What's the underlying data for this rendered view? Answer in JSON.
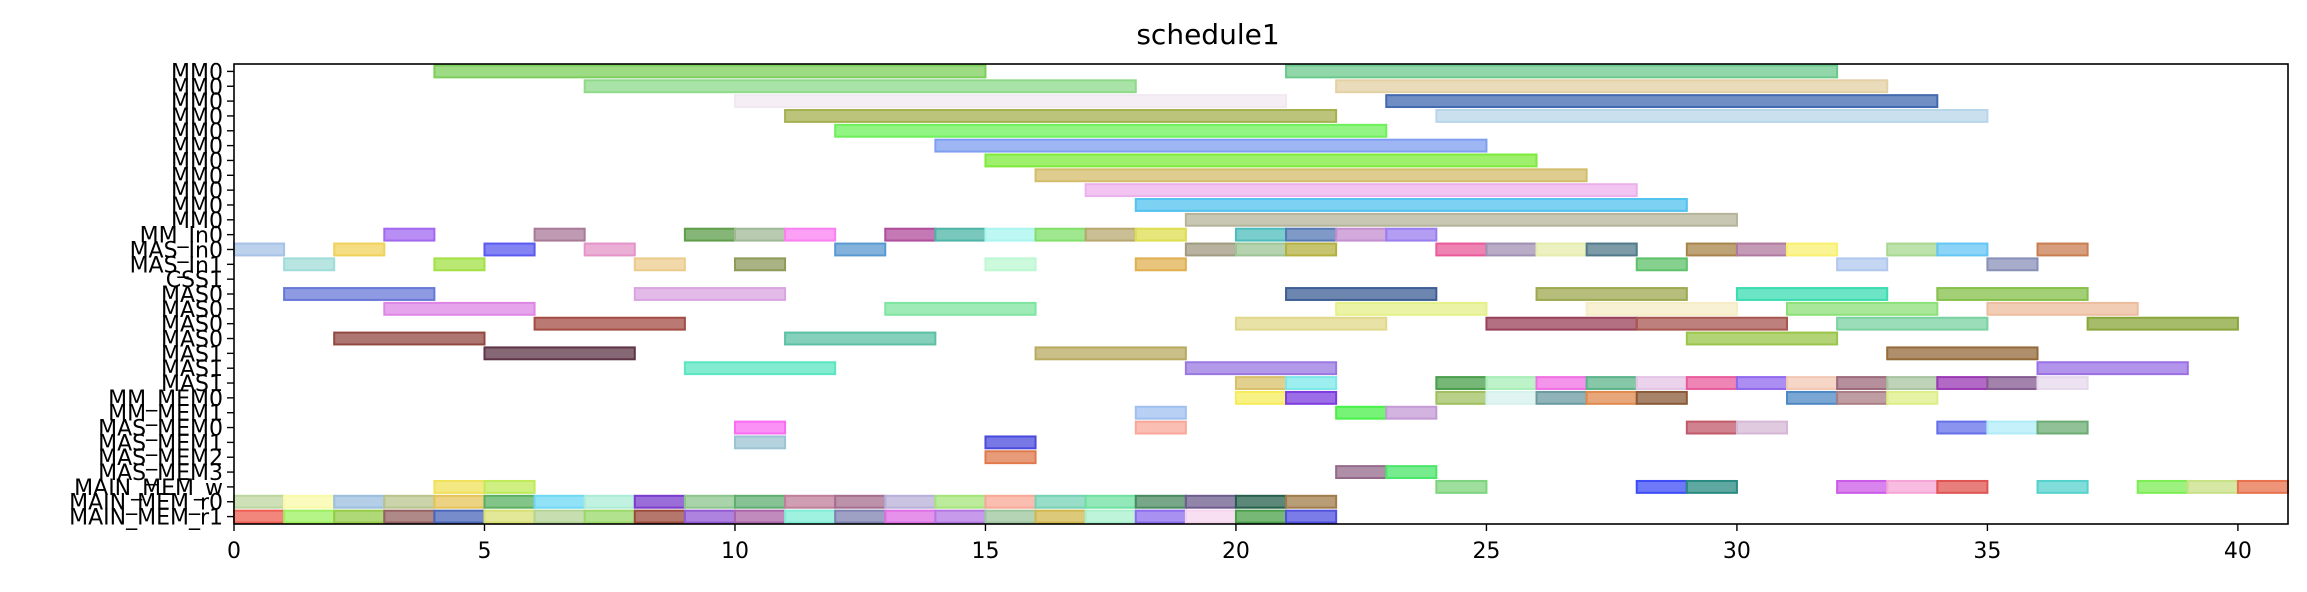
{
  "chart_data": {
    "type": "gantt",
    "title": "schedule1",
    "xlim": [
      0,
      41
    ],
    "x_ticks": [
      0,
      5,
      10,
      15,
      20,
      25,
      30,
      35,
      40
    ],
    "grid": false,
    "legend": "none",
    "rows": [
      "MM0",
      "MM0",
      "MM0",
      "MM0",
      "MM0",
      "MM0",
      "MM0",
      "MM0",
      "MM0",
      "MM0",
      "MM0",
      "MM_In0",
      "MAS_In0",
      "MAS_In1",
      "CSS1",
      "MAS0",
      "MAS0",
      "MAS0",
      "MAS0",
      "MAS1",
      "MAS1",
      "MAS1",
      "MM_MEM0",
      "MM_MEM1",
      "MAS_MEM0",
      "MAS_MEM1",
      "MAS_MEM2",
      "MAS_MEM3",
      "MAIN_MEM_w",
      "MAIN_MEM_r0",
      "MAIN_MEM_r1"
    ],
    "bars": [
      {
        "row": 0,
        "start": 4,
        "end": 15,
        "color": "#7ccf5c"
      },
      {
        "row": 0,
        "start": 21,
        "end": 32,
        "color": "#6cc98c"
      },
      {
        "row": 1,
        "start": 7,
        "end": 18,
        "color": "#8ed98a"
      },
      {
        "row": 1,
        "start": 22,
        "end": 33,
        "color": "#e3d0a4"
      },
      {
        "row": 2,
        "start": 10,
        "end": 21,
        "color": "#f2e8f2"
      },
      {
        "row": 2,
        "start": 23,
        "end": 34,
        "color": "#4268b0"
      },
      {
        "row": 3,
        "start": 11,
        "end": 22,
        "color": "#a5b050"
      },
      {
        "row": 3,
        "start": 24,
        "end": 35,
        "color": "#b8d6ea"
      },
      {
        "row": 4,
        "start": 12,
        "end": 23,
        "color": "#6ef05a"
      },
      {
        "row": 5,
        "start": 14,
        "end": 25,
        "color": "#7f9ef0"
      },
      {
        "row": 6,
        "start": 15,
        "end": 26,
        "color": "#7eea3a"
      },
      {
        "row": 7,
        "start": 16,
        "end": 27,
        "color": "#d3bc6a"
      },
      {
        "row": 8,
        "start": 17,
        "end": 28,
        "color": "#ecb0ec"
      },
      {
        "row": 9,
        "start": 18,
        "end": 29,
        "color": "#52c2ee"
      },
      {
        "row": 10,
        "start": 19,
        "end": 30,
        "color": "#b5b49a"
      },
      {
        "row": 11,
        "start": 3,
        "end": 4,
        "color": "#a268f0"
      },
      {
        "row": 11,
        "start": 6,
        "end": 7,
        "color": "#a87a98"
      },
      {
        "row": 11,
        "start": 9,
        "end": 10,
        "color": "#5e9e4a"
      },
      {
        "row": 11,
        "start": 10,
        "end": 11,
        "color": "#a0b896"
      },
      {
        "row": 11,
        "start": 11,
        "end": 12,
        "color": "#fa80f2"
      },
      {
        "row": 11,
        "start": 13,
        "end": 14,
        "color": "#b04c9c"
      },
      {
        "row": 11,
        "start": 14,
        "end": 15,
        "color": "#4eb5a6"
      },
      {
        "row": 11,
        "start": 15,
        "end": 16,
        "color": "#a8f6ee"
      },
      {
        "row": 11,
        "start": 16,
        "end": 17,
        "color": "#80e06a"
      },
      {
        "row": 11,
        "start": 17,
        "end": 18,
        "color": "#b8a870"
      },
      {
        "row": 11,
        "start": 18,
        "end": 19,
        "color": "#dede52"
      },
      {
        "row": 11,
        "start": 20,
        "end": 21,
        "color": "#4cbcbc"
      },
      {
        "row": 11,
        "start": 21,
        "end": 22,
        "color": "#5478b4"
      },
      {
        "row": 11,
        "start": 22,
        "end": 23,
        "color": "#c48ed0"
      },
      {
        "row": 11,
        "start": 23,
        "end": 24,
        "color": "#9a7ef0"
      },
      {
        "row": 12,
        "start": 0,
        "end": 1,
        "color": "#a6c2e6"
      },
      {
        "row": 12,
        "start": 2,
        "end": 3,
        "color": "#f0d25a"
      },
      {
        "row": 12,
        "start": 5,
        "end": 6,
        "color": "#5a5af0"
      },
      {
        "row": 12,
        "start": 7,
        "end": 8,
        "color": "#e494c8"
      },
      {
        "row": 12,
        "start": 12,
        "end": 13,
        "color": "#5a9ad0"
      },
      {
        "row": 12,
        "start": 19,
        "end": 20,
        "color": "#a09a80"
      },
      {
        "row": 12,
        "start": 20,
        "end": 21,
        "color": "#9cc494"
      },
      {
        "row": 12,
        "start": 21,
        "end": 22,
        "color": "#b4b040"
      },
      {
        "row": 12,
        "start": 24,
        "end": 25,
        "color": "#e85a9a"
      },
      {
        "row": 12,
        "start": 25,
        "end": 26,
        "color": "#a090b4"
      },
      {
        "row": 12,
        "start": 26,
        "end": 27,
        "color": "#e6ecac"
      },
      {
        "row": 12,
        "start": 27,
        "end": 28,
        "color": "#507a8a"
      },
      {
        "row": 12,
        "start": 29,
        "end": 30,
        "color": "#a8844a"
      },
      {
        "row": 12,
        "start": 30,
        "end": 31,
        "color": "#b07a9e"
      },
      {
        "row": 12,
        "start": 31,
        "end": 32,
        "color": "#faf070"
      },
      {
        "row": 12,
        "start": 33,
        "end": 34,
        "color": "#a8d890"
      },
      {
        "row": 12,
        "start": 34,
        "end": 35,
        "color": "#64c6f4"
      },
      {
        "row": 12,
        "start": 36,
        "end": 37,
        "color": "#c87e50"
      },
      {
        "row": 13,
        "start": 1,
        "end": 2,
        "color": "#a0dcd8"
      },
      {
        "row": 13,
        "start": 4,
        "end": 5,
        "color": "#a2e044"
      },
      {
        "row": 13,
        "start": 8,
        "end": 9,
        "color": "#eccc8c"
      },
      {
        "row": 13,
        "start": 10,
        "end": 11,
        "color": "#8e9a5a"
      },
      {
        "row": 13,
        "start": 15,
        "end": 16,
        "color": "#bcf8d2"
      },
      {
        "row": 13,
        "start": 18,
        "end": 19,
        "color": "#e0b050"
      },
      {
        "row": 13,
        "start": 28,
        "end": 29,
        "color": "#5ec26a"
      },
      {
        "row": 13,
        "start": 32,
        "end": 33,
        "color": "#b0c8ee"
      },
      {
        "row": 13,
        "start": 35,
        "end": 36,
        "color": "#8890b8"
      },
      {
        "row": 15,
        "start": 1,
        "end": 4,
        "color": "#6878d8"
      },
      {
        "row": 15,
        "start": 8,
        "end": 11,
        "color": "#daa4e0"
      },
      {
        "row": 15,
        "start": 21,
        "end": 24,
        "color": "#3c5e94"
      },
      {
        "row": 15,
        "start": 26,
        "end": 29,
        "color": "#9ea850"
      },
      {
        "row": 15,
        "start": 30,
        "end": 33,
        "color": "#3adcb0"
      },
      {
        "row": 15,
        "start": 34,
        "end": 37,
        "color": "#84c04a"
      },
      {
        "row": 16,
        "start": 3,
        "end": 6,
        "color": "#de86e6"
      },
      {
        "row": 16,
        "start": 13,
        "end": 16,
        "color": "#7ee4a0"
      },
      {
        "row": 16,
        "start": 22,
        "end": 25,
        "color": "#e4f088"
      },
      {
        "row": 16,
        "start": 27,
        "end": 30,
        "color": "#f6ecc6"
      },
      {
        "row": 16,
        "start": 31,
        "end": 34,
        "color": "#8ce078"
      },
      {
        "row": 16,
        "start": 35,
        "end": 38,
        "color": "#eebc9e"
      },
      {
        "row": 17,
        "start": 6,
        "end": 9,
        "color": "#a44c44"
      },
      {
        "row": 17,
        "start": 20,
        "end": 23,
        "color": "#e0d88a"
      },
      {
        "row": 17,
        "start": 25,
        "end": 28,
        "color": "#9a4058"
      },
      {
        "row": 17,
        "start": 28,
        "end": 31,
        "color": "#a85650"
      },
      {
        "row": 17,
        "start": 32,
        "end": 35,
        "color": "#7ad2a0"
      },
      {
        "row": 17,
        "start": 37,
        "end": 40,
        "color": "#8aa63a"
      },
      {
        "row": 18,
        "start": 2,
        "end": 5,
        "color": "#924840"
      },
      {
        "row": 18,
        "start": 11,
        "end": 14,
        "color": "#5cc0a4"
      },
      {
        "row": 18,
        "start": 29,
        "end": 32,
        "color": "#9ac44a"
      },
      {
        "row": 19,
        "start": 5,
        "end": 8,
        "color": "#5e3446"
      },
      {
        "row": 19,
        "start": 16,
        "end": 19,
        "color": "#b8aa60"
      },
      {
        "row": 19,
        "start": 33,
        "end": 36,
        "color": "#946a3a"
      },
      {
        "row": 20,
        "start": 9,
        "end": 12,
        "color": "#5ae6c0"
      },
      {
        "row": 20,
        "start": 19,
        "end": 22,
        "color": "#9a78e2"
      },
      {
        "row": 20,
        "start": 36,
        "end": 39,
        "color": "#9a70e4"
      },
      {
        "row": 21,
        "start": 20,
        "end": 21,
        "color": "#d8c06a"
      },
      {
        "row": 21,
        "start": 21,
        "end": 22,
        "color": "#7ce8e8"
      },
      {
        "row": 21,
        "start": 24,
        "end": 25,
        "color": "#489e4a"
      },
      {
        "row": 21,
        "start": 25,
        "end": 26,
        "color": "#a8eeb6"
      },
      {
        "row": 21,
        "start": 26,
        "end": 27,
        "color": "#f070e4"
      },
      {
        "row": 21,
        "start": 27,
        "end": 28,
        "color": "#5cb48a"
      },
      {
        "row": 21,
        "start": 28,
        "end": 29,
        "color": "#e4c4e6"
      },
      {
        "row": 21,
        "start": 29,
        "end": 30,
        "color": "#e85c9c"
      },
      {
        "row": 21,
        "start": 30,
        "end": 31,
        "color": "#9068ee"
      },
      {
        "row": 21,
        "start": 31,
        "end": 32,
        "color": "#f2c8b4"
      },
      {
        "row": 21,
        "start": 32,
        "end": 33,
        "color": "#9c6a7a"
      },
      {
        "row": 21,
        "start": 33,
        "end": 34,
        "color": "#a8c4a0"
      },
      {
        "row": 21,
        "start": 34,
        "end": 35,
        "color": "#9a38b4"
      },
      {
        "row": 21,
        "start": 35,
        "end": 36,
        "color": "#845a90"
      },
      {
        "row": 21,
        "start": 36,
        "end": 37,
        "color": "#e6d8ec"
      },
      {
        "row": 22,
        "start": 20,
        "end": 21,
        "color": "#f6ec5a"
      },
      {
        "row": 22,
        "start": 21,
        "end": 22,
        "color": "#7c3ce0"
      },
      {
        "row": 22,
        "start": 24,
        "end": 25,
        "color": "#a0c060"
      },
      {
        "row": 22,
        "start": 25,
        "end": 26,
        "color": "#d6f2ec"
      },
      {
        "row": 22,
        "start": 26,
        "end": 27,
        "color": "#6a9aa0"
      },
      {
        "row": 22,
        "start": 27,
        "end": 28,
        "color": "#e08a4e"
      },
      {
        "row": 22,
        "start": 28,
        "end": 29,
        "color": "#8a5a38"
      },
      {
        "row": 22,
        "start": 31,
        "end": 32,
        "color": "#4e88c4"
      },
      {
        "row": 22,
        "start": 32,
        "end": 33,
        "color": "#a87e84"
      },
      {
        "row": 22,
        "start": 33,
        "end": 34,
        "color": "#ddee86"
      },
      {
        "row": 23,
        "start": 18,
        "end": 19,
        "color": "#a0c0f0"
      },
      {
        "row": 23,
        "start": 22,
        "end": 23,
        "color": "#4af04a"
      },
      {
        "row": 23,
        "start": 23,
        "end": 24,
        "color": "#c49ad6"
      },
      {
        "row": 24,
        "start": 10,
        "end": 11,
        "color": "#fa6cf4"
      },
      {
        "row": 24,
        "start": 18,
        "end": 19,
        "color": "#f8a898"
      },
      {
        "row": 24,
        "start": 29,
        "end": 30,
        "color": "#c05a6a"
      },
      {
        "row": 24,
        "start": 30,
        "end": 31,
        "color": "#d6b8d6"
      },
      {
        "row": 24,
        "start": 34,
        "end": 35,
        "color": "#6470e8"
      },
      {
        "row": 24,
        "start": 35,
        "end": 36,
        "color": "#b0ecf8"
      },
      {
        "row": 24,
        "start": 36,
        "end": 37,
        "color": "#6cac74"
      },
      {
        "row": 25,
        "start": 10,
        "end": 11,
        "color": "#9cc4d4"
      },
      {
        "row": 25,
        "start": 15,
        "end": 16,
        "color": "#4a4adc"
      },
      {
        "row": 26,
        "start": 15,
        "end": 16,
        "color": "#e07a4c"
      },
      {
        "row": 27,
        "start": 22,
        "end": 23,
        "color": "#946a8a"
      },
      {
        "row": 27,
        "start": 23,
        "end": 24,
        "color": "#4ae66a"
      },
      {
        "row": 28,
        "start": 4,
        "end": 5,
        "color": "#f0e05a"
      },
      {
        "row": 28,
        "start": 5,
        "end": 6,
        "color": "#c0ea58"
      },
      {
        "row": 28,
        "start": 24,
        "end": 25,
        "color": "#7ed47e"
      },
      {
        "row": 28,
        "start": 28,
        "end": 29,
        "color": "#3c4cf6"
      },
      {
        "row": 28,
        "start": 29,
        "end": 30,
        "color": "#2a8a82"
      },
      {
        "row": 28,
        "start": 32,
        "end": 33,
        "color": "#cc5ae8"
      },
      {
        "row": 28,
        "start": 33,
        "end": 34,
        "color": "#f6a6d6"
      },
      {
        "row": 28,
        "start": 34,
        "end": 35,
        "color": "#e05452"
      },
      {
        "row": 28,
        "start": 36,
        "end": 37,
        "color": "#56d2cc"
      },
      {
        "row": 28,
        "start": 38,
        "end": 39,
        "color": "#7cee54"
      },
      {
        "row": 28,
        "start": 39,
        "end": 40,
        "color": "#c8e086"
      },
      {
        "row": 28,
        "start": 40,
        "end": 41,
        "color": "#e8704c"
      },
      {
        "row": 29,
        "start": 0,
        "end": 1,
        "color": "#bcd6a0"
      },
      {
        "row": 29,
        "start": 1,
        "end": 2,
        "color": "#fafaa8"
      },
      {
        "row": 29,
        "start": 2,
        "end": 3,
        "color": "#9abede"
      },
      {
        "row": 29,
        "start": 3,
        "end": 4,
        "color": "#b8c48c"
      },
      {
        "row": 29,
        "start": 4,
        "end": 5,
        "color": "#e4c45a"
      },
      {
        "row": 29,
        "start": 5,
        "end": 6,
        "color": "#5ab060"
      },
      {
        "row": 29,
        "start": 6,
        "end": 7,
        "color": "#6ed8f4"
      },
      {
        "row": 29,
        "start": 7,
        "end": 8,
        "color": "#acecd6"
      },
      {
        "row": 29,
        "start": 8,
        "end": 9,
        "color": "#7a3ccc"
      },
      {
        "row": 29,
        "start": 9,
        "end": 10,
        "color": "#8cc48c"
      },
      {
        "row": 29,
        "start": 10,
        "end": 11,
        "color": "#5eae70"
      },
      {
        "row": 29,
        "start": 11,
        "end": 12,
        "color": "#c07e9a"
      },
      {
        "row": 29,
        "start": 12,
        "end": 13,
        "color": "#a46e8e"
      },
      {
        "row": 29,
        "start": 13,
        "end": 14,
        "color": "#b8b0d8"
      },
      {
        "row": 29,
        "start": 14,
        "end": 15,
        "color": "#a4e47a"
      },
      {
        "row": 29,
        "start": 15,
        "end": 16,
        "color": "#f8a896"
      },
      {
        "row": 29,
        "start": 16,
        "end": 17,
        "color": "#76d2b4"
      },
      {
        "row": 29,
        "start": 17,
        "end": 18,
        "color": "#6ee0a2"
      },
      {
        "row": 29,
        "start": 18,
        "end": 19,
        "color": "#4a8a60"
      },
      {
        "row": 29,
        "start": 19,
        "end": 20,
        "color": "#6e5c8e"
      },
      {
        "row": 29,
        "start": 20,
        "end": 21,
        "color": "#26604c"
      },
      {
        "row": 29,
        "start": 21,
        "end": 22,
        "color": "#a07c4a"
      },
      {
        "row": 30,
        "start": 0,
        "end": 1,
        "color": "#ee5e52"
      },
      {
        "row": 30,
        "start": 1,
        "end": 2,
        "color": "#9cf05e"
      },
      {
        "row": 30,
        "start": 2,
        "end": 3,
        "color": "#94cc48"
      },
      {
        "row": 30,
        "start": 3,
        "end": 4,
        "color": "#946060"
      },
      {
        "row": 30,
        "start": 4,
        "end": 5,
        "color": "#4a66b8"
      },
      {
        "row": 30,
        "start": 5,
        "end": 6,
        "color": "#d8e074"
      },
      {
        "row": 30,
        "start": 6,
        "end": 7,
        "color": "#b4d496"
      },
      {
        "row": 30,
        "start": 7,
        "end": 8,
        "color": "#9ad868"
      },
      {
        "row": 30,
        "start": 8,
        "end": 9,
        "color": "#9c4a3a"
      },
      {
        "row": 30,
        "start": 9,
        "end": 10,
        "color": "#925ad4"
      },
      {
        "row": 30,
        "start": 10,
        "end": 11,
        "color": "#ac64a8"
      },
      {
        "row": 30,
        "start": 11,
        "end": 12,
        "color": "#80eed6"
      },
      {
        "row": 30,
        "start": 12,
        "end": 13,
        "color": "#7e82b0"
      },
      {
        "row": 30,
        "start": 13,
        "end": 14,
        "color": "#de6ee4"
      },
      {
        "row": 30,
        "start": 14,
        "end": 15,
        "color": "#b478e4"
      },
      {
        "row": 30,
        "start": 15,
        "end": 16,
        "color": "#9cc69e"
      },
      {
        "row": 30,
        "start": 16,
        "end": 17,
        "color": "#d0b84e"
      },
      {
        "row": 30,
        "start": 17,
        "end": 18,
        "color": "#a8f0cc"
      },
      {
        "row": 30,
        "start": 18,
        "end": 19,
        "color": "#8c6cee"
      },
      {
        "row": 30,
        "start": 19,
        "end": 20,
        "color": "#f6d4ee"
      },
      {
        "row": 30,
        "start": 20,
        "end": 21,
        "color": "#4aa04a"
      },
      {
        "row": 30,
        "start": 21,
        "end": 22,
        "color": "#5050e0"
      }
    ]
  }
}
